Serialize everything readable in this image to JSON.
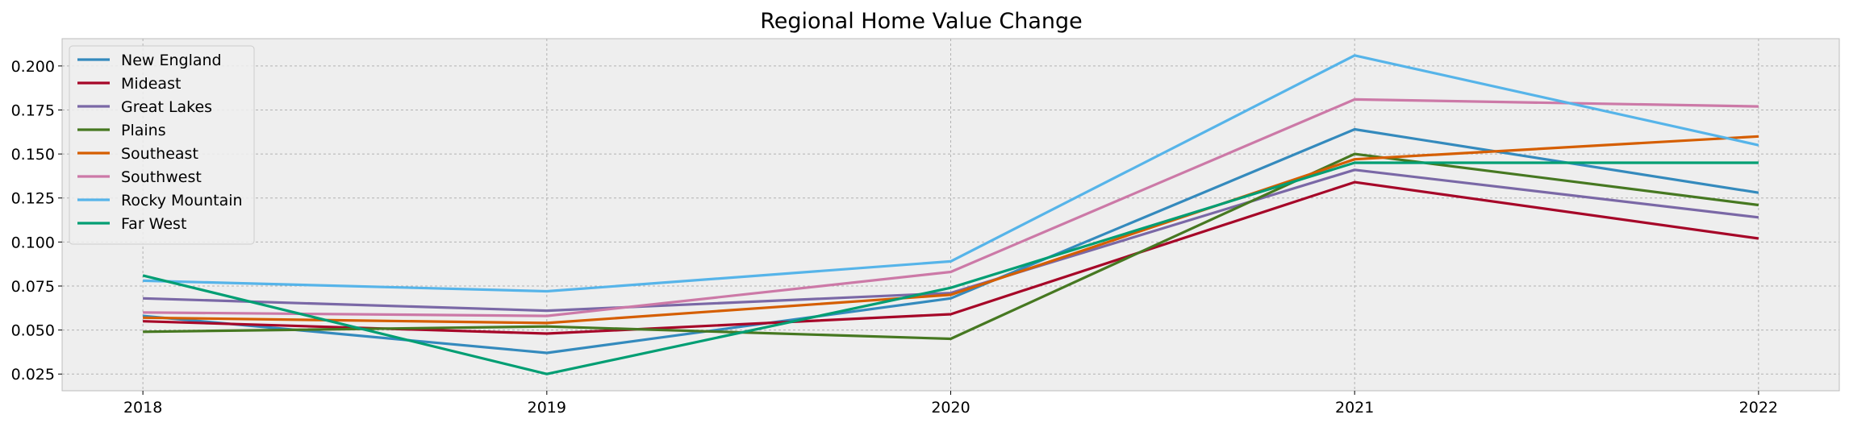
{
  "chart_data": {
    "type": "line",
    "title": "Regional Home Value Change",
    "xlabel": "",
    "ylabel": "",
    "x": [
      "2018",
      "2019",
      "2020",
      "2021",
      "2022"
    ],
    "xlim": [
      -0.2,
      4.2
    ],
    "ylim": [
      0.0155,
      0.2155
    ],
    "yticks": [
      "0.025",
      "0.050",
      "0.075",
      "0.100",
      "0.125",
      "0.150",
      "0.175",
      "0.200"
    ],
    "ytick_values": [
      0.025,
      0.05,
      0.075,
      0.1,
      0.125,
      0.15,
      0.175,
      0.2
    ],
    "grid": true,
    "legend_position": "upper-left",
    "series": [
      {
        "name": "New England",
        "color": "#348ABD",
        "values": [
          0.058,
          0.037,
          0.068,
          0.164,
          0.128
        ]
      },
      {
        "name": "Mideast",
        "color": "#A60628",
        "values": [
          0.055,
          0.048,
          0.059,
          0.134,
          0.102
        ]
      },
      {
        "name": "Great Lakes",
        "color": "#7A68A6",
        "values": [
          0.068,
          0.061,
          0.071,
          0.141,
          0.114
        ]
      },
      {
        "name": "Plains",
        "color": "#467821",
        "values": [
          0.049,
          0.052,
          0.045,
          0.15,
          0.121
        ]
      },
      {
        "name": "Southeast",
        "color": "#D55E00",
        "values": [
          0.057,
          0.054,
          0.07,
          0.147,
          0.16
        ]
      },
      {
        "name": "Southwest",
        "color": "#CC79A7",
        "values": [
          0.06,
          0.058,
          0.083,
          0.181,
          0.177
        ]
      },
      {
        "name": "Rocky Mountain",
        "color": "#56B4E9",
        "values": [
          0.078,
          0.072,
          0.089,
          0.206,
          0.155
        ]
      },
      {
        "name": "Far West",
        "color": "#009E73",
        "values": [
          0.081,
          0.025,
          0.074,
          0.145,
          0.145
        ]
      }
    ]
  },
  "colors": {
    "plot_background": "#EEEEEE",
    "grid": "#B2B2B2",
    "axes_edge": "#BCBCBC"
  }
}
